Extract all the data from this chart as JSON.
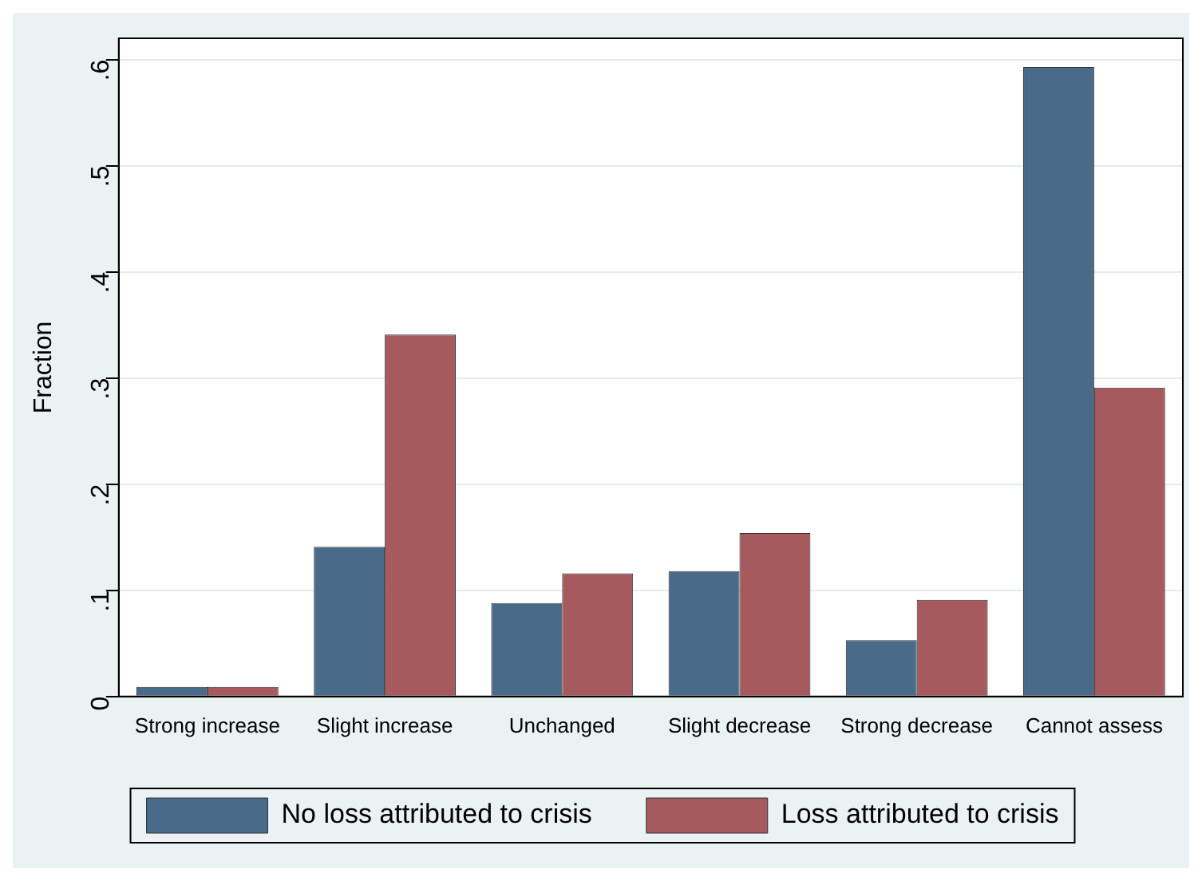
{
  "chart_data": {
    "type": "bar",
    "ylabel": "Fraction",
    "categories": [
      "Strong increase",
      "Slight increase",
      "Unchanged",
      "Slight decrease",
      "Strong decrease",
      "Cannot assess"
    ],
    "series": [
      {
        "name": "No loss attributed to crisis",
        "color": "#4a6a8a",
        "values": [
          0.009,
          0.141,
          0.088,
          0.118,
          0.053,
          0.593
        ]
      },
      {
        "name": "Loss attributed to crisis",
        "color": "#a65a5e",
        "values": [
          0.009,
          0.341,
          0.116,
          0.154,
          0.091,
          0.291
        ]
      }
    ],
    "ylim": [
      0,
      0.62
    ],
    "yticks": [
      0,
      {
        "value": 0.1,
        "label": ".1"
      },
      {
        "value": 0.2,
        "label": ".2"
      },
      {
        "value": 0.3,
        "label": ".3"
      },
      {
        "value": 0.4,
        "label": ".4"
      },
      {
        "value": 0.5,
        "label": ".5"
      },
      {
        "value": 0.6,
        "label": ".6"
      }
    ],
    "grid": "y",
    "legend": "bottom"
  }
}
